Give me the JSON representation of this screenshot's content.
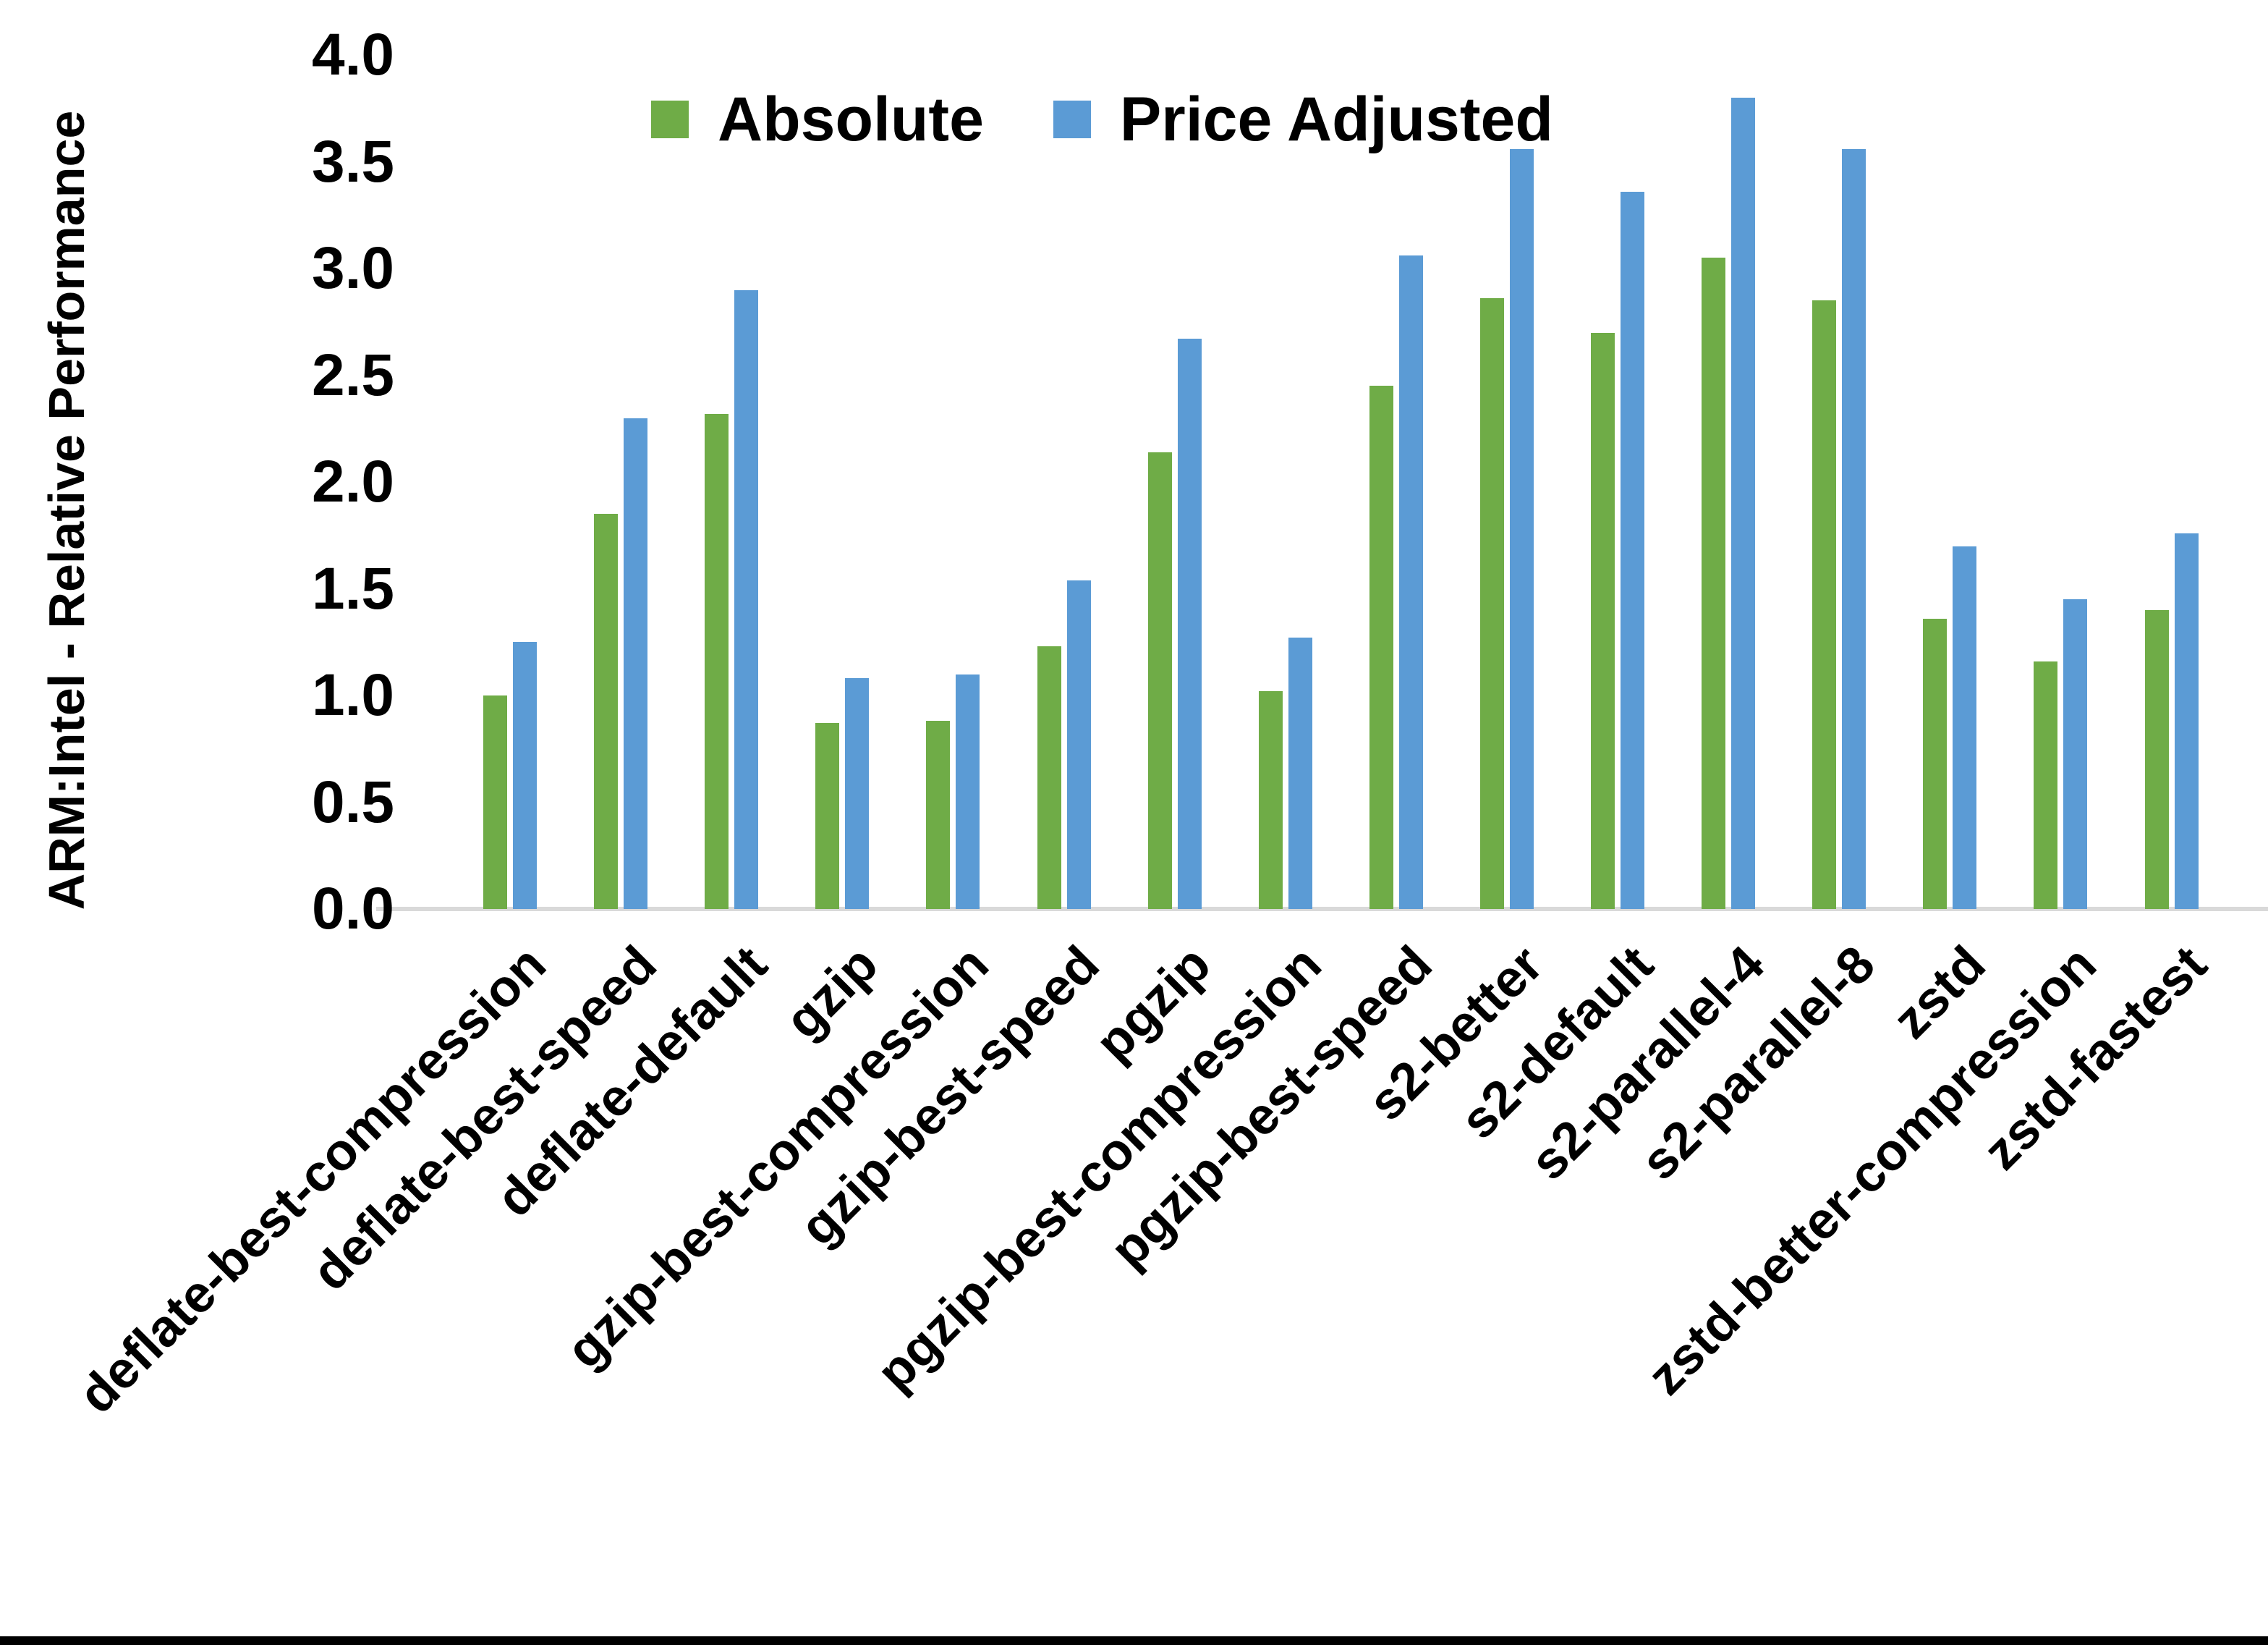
{
  "figure": {
    "background": "#ffffff",
    "bottom_border_color": "#000000"
  },
  "chart_data": {
    "type": "bar",
    "title": "",
    "xlabel": "",
    "ylabel": "ARM:Intel - Relative Performance",
    "ylim": [
      0.0,
      4.0
    ],
    "ytick_step": 0.5,
    "ytick_labels": [
      "0.0",
      "0.5",
      "1.0",
      "1.5",
      "2.0",
      "2.5",
      "3.0",
      "3.5",
      "4.0"
    ],
    "grid": false,
    "legend_position": "top-center",
    "axis_line_color": "#d9d9d9",
    "categories": [
      "deflate-best-compression",
      "deflate-best-speed",
      "deflate-default",
      "gzip",
      "gzip-best-compression",
      "gzip-best-speed",
      "pgzip",
      "pgzip-best-compression",
      "pgzip-best-speed",
      "s2-better",
      "s2-default",
      "s2-parallel-4",
      "s2-parallel-8",
      "zstd",
      "zstd-better-compression",
      "zstd-fastest"
    ],
    "series": [
      {
        "name": "Absolute",
        "color": "#6FAC47",
        "values": [
          1.0,
          1.85,
          2.32,
          0.87,
          0.88,
          1.23,
          2.14,
          1.02,
          2.45,
          2.86,
          2.7,
          3.05,
          2.85,
          1.36,
          1.16,
          1.4
        ]
      },
      {
        "name": "Price Adjusted",
        "color": "#5B9BD5",
        "values": [
          1.25,
          2.3,
          2.9,
          1.08,
          1.1,
          1.54,
          2.67,
          1.27,
          3.06,
          3.56,
          3.36,
          3.8,
          3.56,
          1.7,
          1.45,
          1.76
        ]
      }
    ]
  }
}
